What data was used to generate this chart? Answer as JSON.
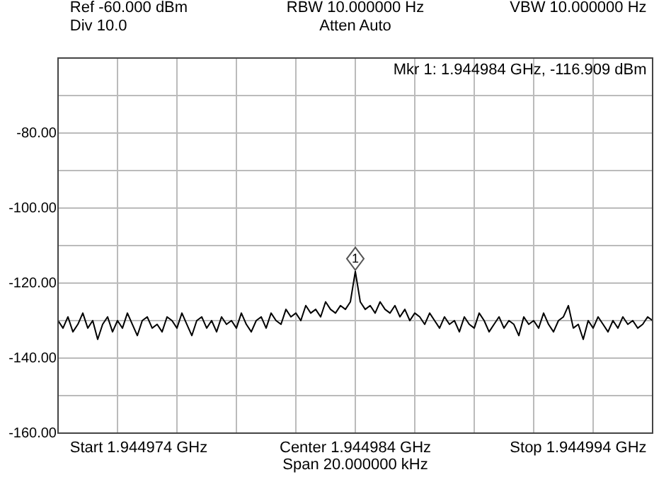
{
  "chart_data": {
    "type": "line",
    "categories": [
      null,
      null,
      null,
      null,
      null,
      null,
      null,
      null,
      null,
      null,
      null,
      null,
      null,
      null,
      null,
      null,
      null,
      null,
      null,
      null,
      null,
      null,
      null,
      null,
      null,
      null,
      null,
      null,
      null,
      null,
      null,
      null,
      null,
      null,
      null,
      null,
      null,
      null,
      null,
      null,
      null,
      null,
      null,
      null,
      null,
      null,
      null,
      null,
      null,
      null,
      null,
      null,
      null,
      null,
      null,
      null,
      null,
      null,
      null,
      null,
      null,
      null,
      null,
      null,
      null,
      null,
      null,
      null,
      null,
      null,
      null,
      null,
      null,
      null,
      null,
      null,
      null,
      null,
      null,
      null,
      null,
      null,
      null,
      null,
      null,
      null,
      null,
      null,
      null,
      null,
      null,
      null,
      null,
      null,
      null,
      null,
      null,
      null,
      null,
      null,
      null,
      null,
      null,
      null,
      null,
      null,
      null,
      null,
      null,
      null,
      null,
      null,
      null,
      null,
      null,
      null,
      null,
      null,
      null,
      null,
      null
    ],
    "series": [
      {
        "color": "#000000",
        "values": [
          -130,
          -132,
          -129,
          -133,
          -131,
          -128,
          -132,
          -130,
          -135,
          -131,
          -129,
          -133,
          -130,
          -132,
          -128,
          -131,
          -134,
          -130,
          -129,
          -132,
          -131,
          -133,
          -129,
          -130,
          -132,
          -128,
          -131,
          -134,
          -130,
          -129,
          -132,
          -130,
          -133,
          -129,
          -131,
          -130,
          -132,
          -128,
          -131,
          -133,
          -130,
          -129,
          -132,
          -128,
          -130,
          -131,
          -127,
          -129,
          -128,
          -130,
          -126,
          -128,
          -127,
          -129,
          -125,
          -127,
          -128,
          -126,
          -127,
          -125,
          -116.909,
          -125,
          -127,
          -126,
          -128,
          -125,
          -127,
          -128,
          -126,
          -129,
          -127,
          -130,
          -128,
          -129,
          -131,
          -128,
          -130,
          -132,
          -129,
          -131,
          -130,
          -133,
          -129,
          -131,
          -132,
          -128,
          -130,
          -133,
          -131,
          -129,
          -132,
          -130,
          -131,
          -134,
          -129,
          -131,
          -130,
          -132,
          -128,
          -131,
          -133,
          -130,
          -129,
          -126,
          -132,
          -131,
          -135,
          -130,
          -132,
          -129,
          -131,
          -133,
          -130,
          -132,
          -129,
          -131,
          -130,
          -132,
          -131,
          -129,
          -130
        ]
      }
    ],
    "ylim": [
      -160,
      -60
    ],
    "yticks": [
      {
        "value": -160,
        "label": "-160.00"
      },
      {
        "value": -150,
        "label": null
      },
      {
        "value": -140,
        "label": "-140.00"
      },
      {
        "value": -130,
        "label": null
      },
      {
        "value": -120,
        "label": "-120.00"
      },
      {
        "value": -110,
        "label": null
      },
      {
        "value": -100,
        "label": "-100.00"
      },
      {
        "value": -90,
        "label": null
      },
      {
        "value": -80,
        "label": "-80.00"
      },
      {
        "value": -70,
        "label": null
      },
      {
        "value": -60,
        "label": null
      }
    ],
    "grid": true,
    "marker": "none",
    "line_style": "solid",
    "legend": false,
    "tick_labels": "y",
    "annotations": [
      "Ref -60.000 dBm",
      "Div 10.0",
      "RBW 10.000000 Hz",
      "Atten Auto",
      "VBW 10.000000 Hz",
      "Mkr 1: 1.944984 GHz, -116.909 dBm",
      "Start 1.944974 GHz",
      "Center 1.944984 GHz",
      "Span 20.000000 kHz",
      "Stop 1.944994 GHz",
      {
        "text": "1",
        "y": -116.909
      }
    ]
  }
}
